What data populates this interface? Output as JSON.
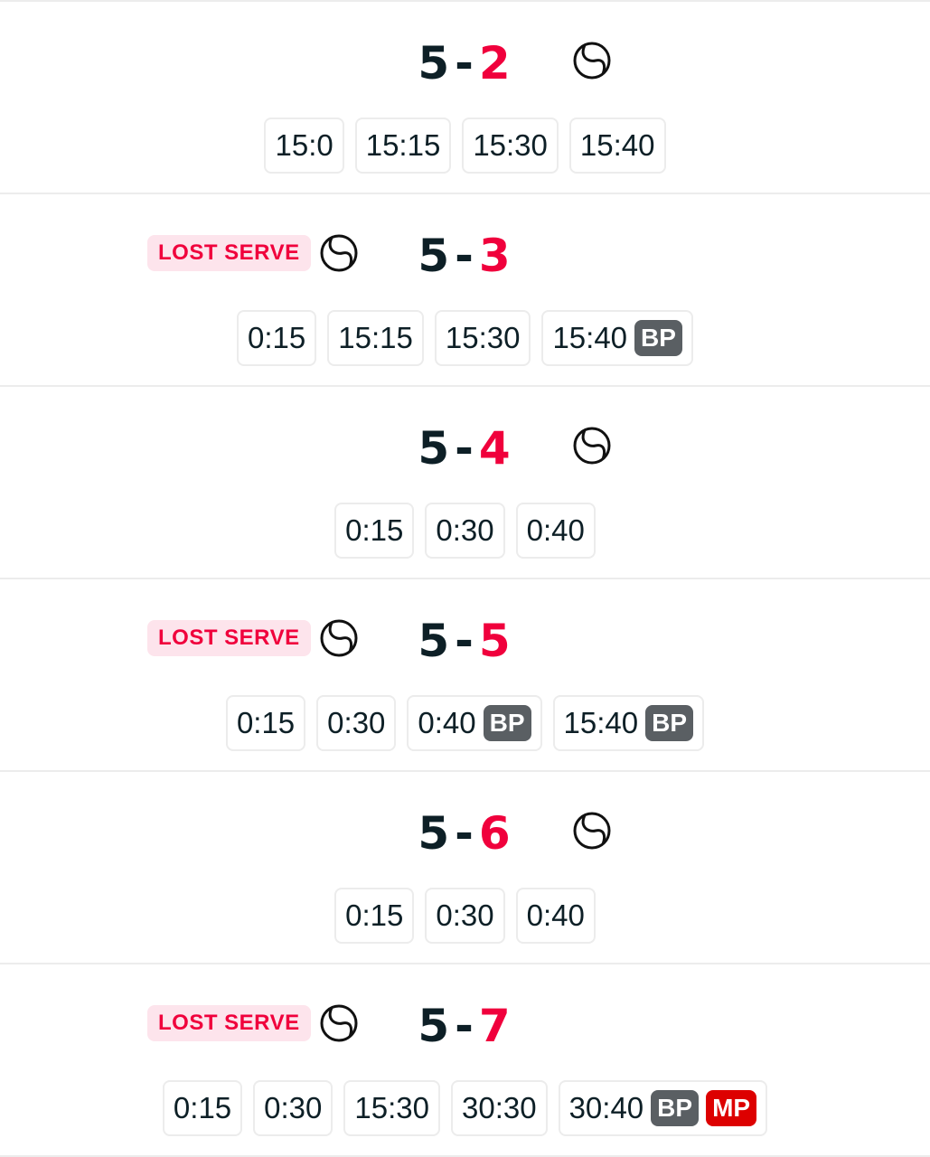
{
  "colors": {
    "home_score": "#0d1f26",
    "away_score": "#f0003c",
    "lost_serve_bg": "#fde4ec",
    "lost_serve_text": "#f0003c",
    "bp_badge": "#5a5f63",
    "mp_badge": "#dd0000"
  },
  "games": [
    {
      "home": "5",
      "away": "2",
      "server": "right",
      "lost_serve": null,
      "points": [
        {
          "score": "15:0",
          "badges": []
        },
        {
          "score": "15:15",
          "badges": []
        },
        {
          "score": "15:30",
          "badges": []
        },
        {
          "score": "15:40",
          "badges": []
        }
      ]
    },
    {
      "home": "5",
      "away": "3",
      "server": "left",
      "lost_serve": "LOST SERVE",
      "points": [
        {
          "score": "0:15",
          "badges": []
        },
        {
          "score": "15:15",
          "badges": []
        },
        {
          "score": "15:30",
          "badges": []
        },
        {
          "score": "15:40",
          "badges": [
            "BP"
          ]
        }
      ]
    },
    {
      "home": "5",
      "away": "4",
      "server": "right",
      "lost_serve": null,
      "points": [
        {
          "score": "0:15",
          "badges": []
        },
        {
          "score": "0:30",
          "badges": []
        },
        {
          "score": "0:40",
          "badges": []
        }
      ]
    },
    {
      "home": "5",
      "away": "5",
      "server": "left",
      "lost_serve": "LOST SERVE",
      "points": [
        {
          "score": "0:15",
          "badges": []
        },
        {
          "score": "0:30",
          "badges": []
        },
        {
          "score": "0:40",
          "badges": [
            "BP"
          ]
        },
        {
          "score": "15:40",
          "badges": [
            "BP"
          ]
        }
      ]
    },
    {
      "home": "5",
      "away": "6",
      "server": "right",
      "lost_serve": null,
      "points": [
        {
          "score": "0:15",
          "badges": []
        },
        {
          "score": "0:30",
          "badges": []
        },
        {
          "score": "0:40",
          "badges": []
        }
      ]
    },
    {
      "home": "5",
      "away": "7",
      "server": "left",
      "lost_serve": "LOST SERVE",
      "points": [
        {
          "score": "0:15",
          "badges": []
        },
        {
          "score": "0:30",
          "badges": []
        },
        {
          "score": "15:30",
          "badges": []
        },
        {
          "score": "30:30",
          "badges": []
        },
        {
          "score": "30:40",
          "badges": [
            "BP",
            "MP"
          ]
        }
      ]
    }
  ],
  "score_separator": "-"
}
